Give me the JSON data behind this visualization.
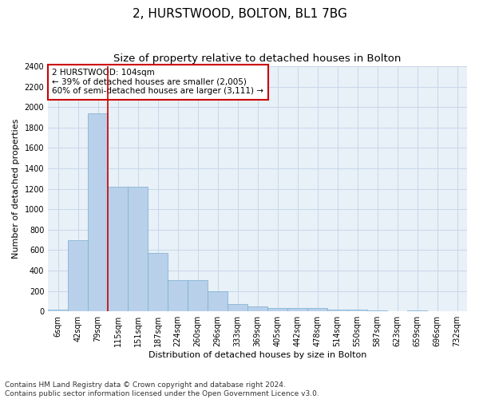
{
  "title": "2, HURSTWOOD, BOLTON, BL1 7BG",
  "subtitle": "Size of property relative to detached houses in Bolton",
  "xlabel": "Distribution of detached houses by size in Bolton",
  "ylabel": "Number of detached properties",
  "categories": [
    "6sqm",
    "42sqm",
    "79sqm",
    "115sqm",
    "151sqm",
    "187sqm",
    "224sqm",
    "260sqm",
    "296sqm",
    "333sqm",
    "369sqm",
    "405sqm",
    "442sqm",
    "478sqm",
    "514sqm",
    "550sqm",
    "587sqm",
    "623sqm",
    "659sqm",
    "696sqm",
    "732sqm"
  ],
  "values": [
    15,
    700,
    1940,
    1220,
    1220,
    575,
    305,
    305,
    200,
    75,
    45,
    35,
    35,
    30,
    15,
    15,
    10,
    5,
    10,
    5,
    5
  ],
  "bar_color": "#b8d0ea",
  "bar_edge_color": "#7aaed0",
  "vline_color": "#cc0000",
  "annotation_text": "2 HURSTWOOD: 104sqm\n← 39% of detached houses are smaller (2,005)\n60% of semi-detached houses are larger (3,111) →",
  "annotation_box_color": "#cc0000",
  "ylim": [
    0,
    2400
  ],
  "yticks": [
    0,
    200,
    400,
    600,
    800,
    1000,
    1200,
    1400,
    1600,
    1800,
    2000,
    2200,
    2400
  ],
  "footer": "Contains HM Land Registry data © Crown copyright and database right 2024.\nContains public sector information licensed under the Open Government Licence v3.0.",
  "bg_color": "#ffffff",
  "plot_bg_color": "#e8f0f8",
  "grid_color": "#c8d8e8",
  "title_fontsize": 11,
  "subtitle_fontsize": 9.5,
  "axis_label_fontsize": 8,
  "tick_fontsize": 7,
  "annotation_fontsize": 7.5,
  "footer_fontsize": 6.5,
  "vline_x_index": 2.5
}
